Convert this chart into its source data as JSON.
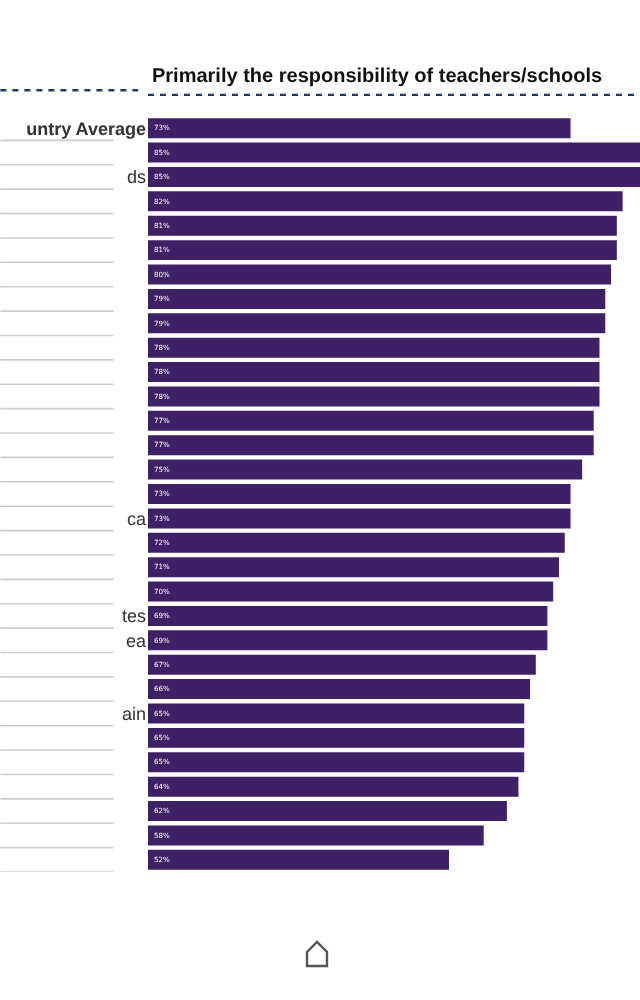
{
  "chart_data": {
    "type": "bar",
    "orientation": "horizontal",
    "title": "Primarily the responsibility of teachers/schools",
    "categories": [
      "untry Average",
      null,
      "ds",
      null,
      null,
      null,
      null,
      null,
      null,
      null,
      null,
      null,
      null,
      null,
      null,
      null,
      "ca",
      null,
      null,
      null,
      "tes",
      "ea",
      null,
      null,
      "ain",
      null,
      null,
      null,
      null,
      null,
      null
    ],
    "values": [
      73,
      85,
      85,
      82,
      81,
      81,
      80,
      79,
      79,
      78,
      78,
      78,
      77,
      77,
      75,
      73,
      73,
      72,
      71,
      70,
      69,
      69,
      67,
      66,
      65,
      65,
      65,
      64,
      62,
      58,
      52
    ],
    "value_labels": [
      "73%",
      "85%",
      "85%",
      "82%",
      "81%",
      "81%",
      "80%",
      "79%",
      "79%",
      "78%",
      "78%",
      "78%",
      "77%",
      "77%",
      "75%",
      "73%",
      "73%",
      "72%",
      "71%",
      "70%",
      "69%",
      "69%",
      "67%",
      "66%",
      "65%",
      "65%",
      "65%",
      "64%",
      "62%",
      "58%",
      "52%"
    ],
    "color": "#3e2067",
    "grid": false
  }
}
